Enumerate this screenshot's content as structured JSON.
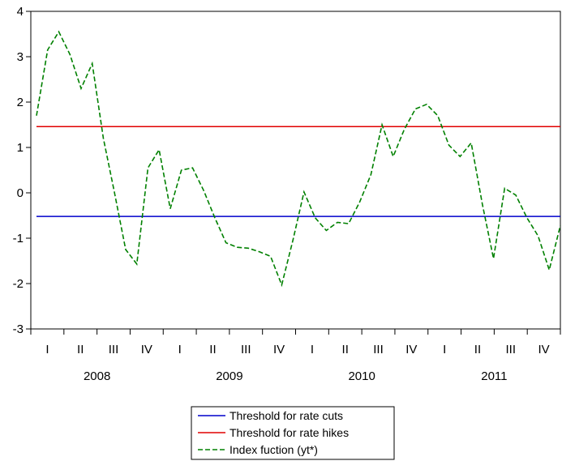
{
  "chart_data": {
    "type": "line",
    "title": "",
    "xlabel": "",
    "ylabel": "",
    "ylim": [
      -3,
      4
    ],
    "yticks": [
      -3,
      -2,
      -1,
      0,
      1,
      2,
      3,
      4
    ],
    "ytick_labels": [
      "-3",
      "-2",
      "-1",
      "0",
      "1",
      "2",
      "3",
      "4"
    ],
    "quarters": [
      "I",
      "II",
      "III",
      "IV",
      "I",
      "II",
      "III",
      "IV",
      "I",
      "II",
      "III",
      "IV",
      "I",
      "II",
      "III",
      "IV"
    ],
    "years": [
      "2008",
      "2009",
      "2010",
      "2011"
    ],
    "grid": false,
    "legend_position": "bottom-center",
    "series": [
      {
        "name": "Threshold for rate cuts",
        "style": "solid",
        "color": "#0000cc",
        "constant": -0.52
      },
      {
        "name": "Threshold for rate hikes",
        "style": "solid",
        "color": "#e00000",
        "constant": 1.46
      },
      {
        "name": "Index fuction (yt*)",
        "style": "dashed",
        "color": "#008000",
        "values": [
          1.7,
          3.15,
          3.55,
          3.05,
          2.3,
          2.85,
          1.2,
          0.0,
          -1.25,
          -1.57,
          0.55,
          0.95,
          -0.35,
          0.5,
          0.55,
          0.05,
          -0.55,
          -1.1,
          -1.2,
          -1.22,
          -1.3,
          -1.4,
          -2.03,
          -1.05,
          0.02,
          -0.55,
          -0.83,
          -0.65,
          -0.68,
          -0.2,
          0.4,
          1.5,
          0.8,
          1.4,
          1.85,
          1.95,
          1.7,
          1.05,
          0.8,
          1.1,
          -0.25,
          -1.45,
          0.1,
          -0.05,
          -0.55,
          -0.95,
          -1.7,
          -0.72
        ]
      }
    ]
  }
}
